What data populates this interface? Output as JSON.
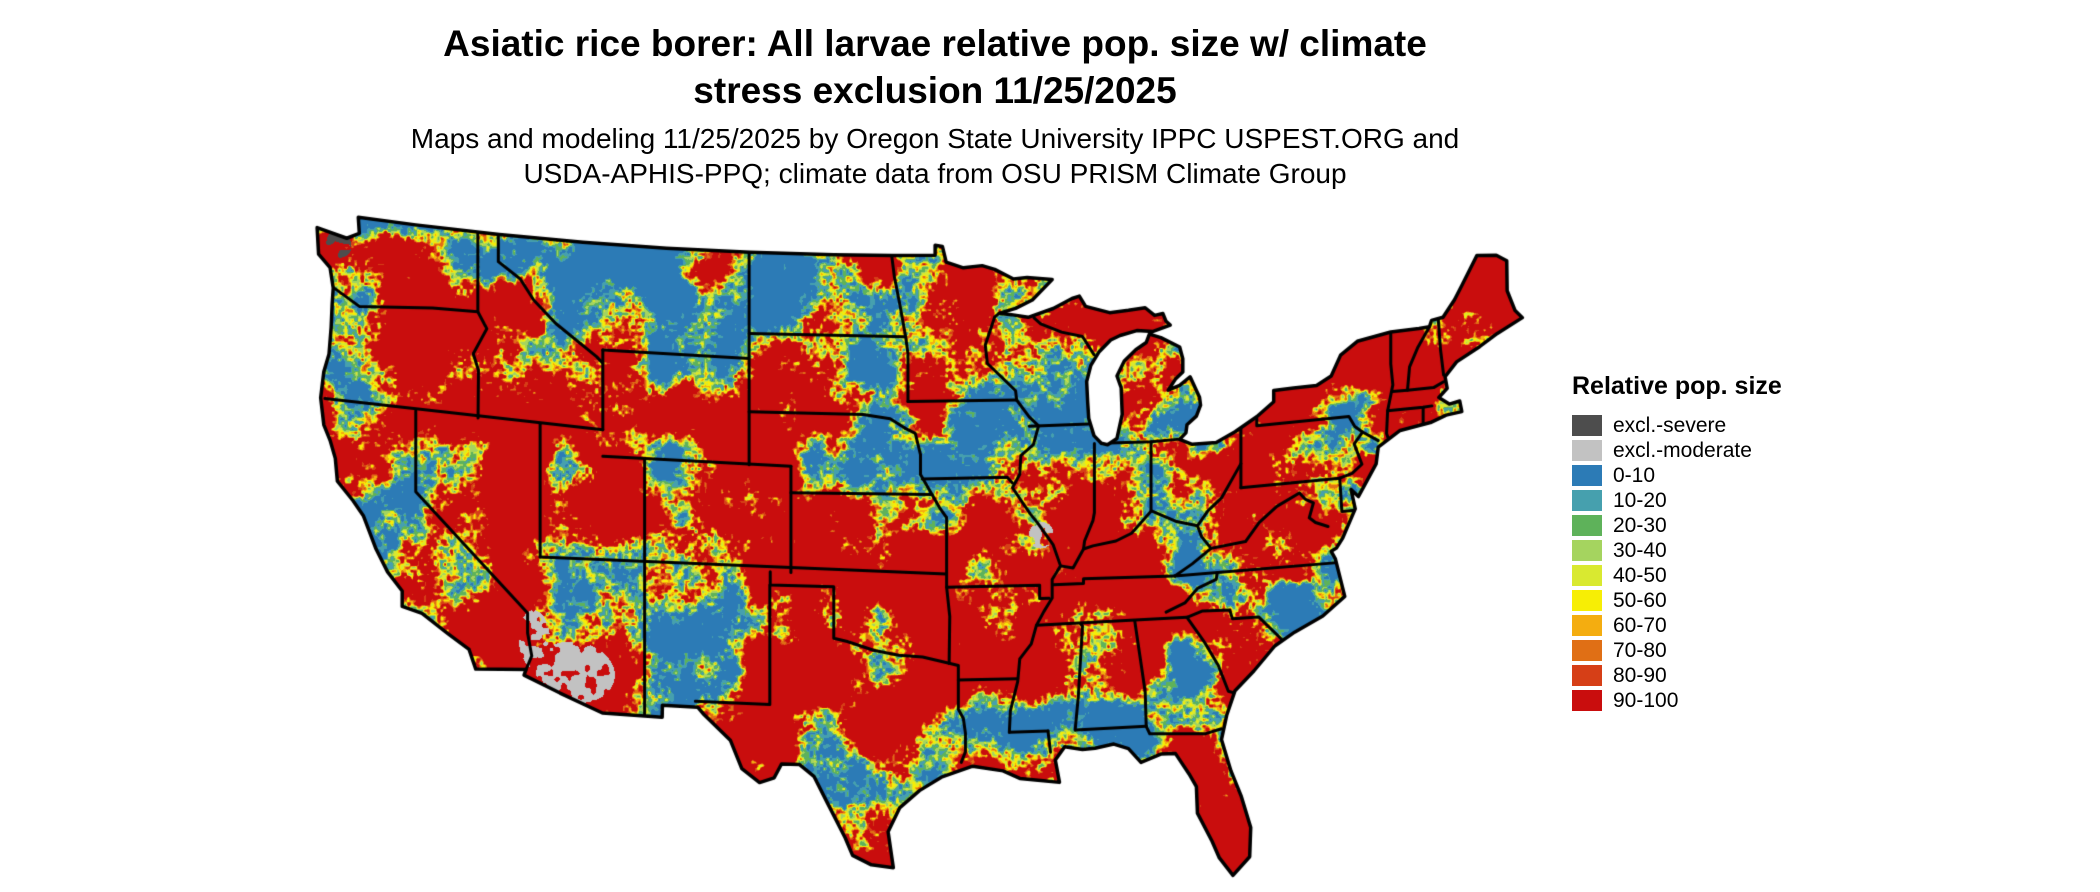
{
  "title": {
    "line1": "Asiatic rice borer: All larvae relative pop. size w/ climate",
    "line2": "stress exclusion 11/25/2025"
  },
  "subtitle": {
    "line1": "Maps and modeling 11/25/2025 by Oregon State University IPPC USPEST.ORG and",
    "line2": "USDA-APHIS-PPQ; climate data from OSU PRISM Climate Group"
  },
  "map": {
    "region": "Continental United States",
    "kind": "raster relative population size map with state boundaries",
    "border_color": "#000000",
    "background_color": "#ffffff"
  },
  "legend": {
    "title": "Relative pop. size",
    "items": [
      {
        "label": "excl.-severe",
        "color": "#4d4d4d"
      },
      {
        "label": "excl.-moderate",
        "color": "#c2c2c2"
      },
      {
        "label": "0-10",
        "color": "#2c7bb6"
      },
      {
        "label": "10-20",
        "color": "#46a0ae"
      },
      {
        "label": "20-30",
        "color": "#5eb25a"
      },
      {
        "label": "30-40",
        "color": "#a5d45f"
      },
      {
        "label": "40-50",
        "color": "#d9e930"
      },
      {
        "label": "50-60",
        "color": "#f7ee05"
      },
      {
        "label": "60-70",
        "color": "#f4ad10"
      },
      {
        "label": "70-80",
        "color": "#e06f15"
      },
      {
        "label": "80-90",
        "color": "#d63f17"
      },
      {
        "label": "90-100",
        "color": "#c90d0d"
      }
    ]
  }
}
